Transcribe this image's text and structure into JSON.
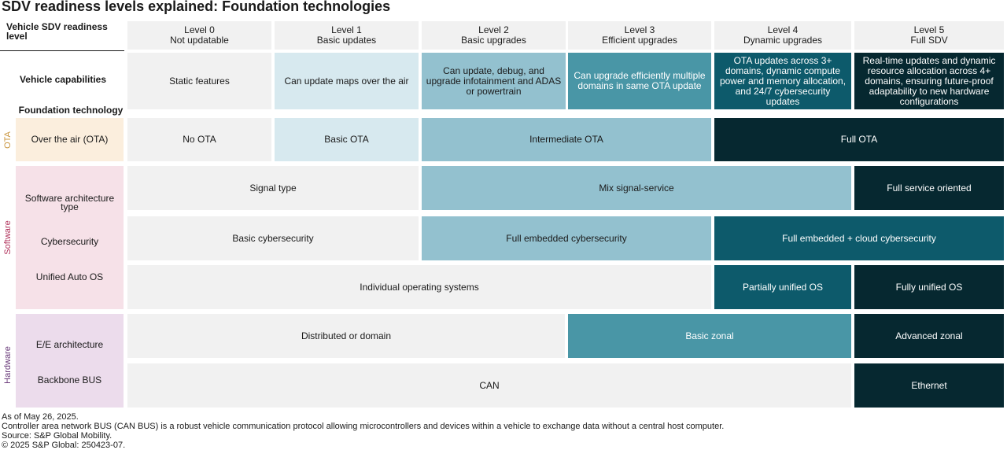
{
  "title": "SDV readiness levels explained: Foundation technologies",
  "header": {
    "corner_label": "Vehicle SDV readiness level",
    "levels": [
      {
        "level": "Level 0",
        "name": "Not updatable"
      },
      {
        "level": "Level 1",
        "name": "Basic updates"
      },
      {
        "level": "Level 2",
        "name": "Basic upgrades"
      },
      {
        "level": "Level 3",
        "name": "Efficient upgrades"
      },
      {
        "level": "Level 4",
        "name": "Dynamic upgrades"
      },
      {
        "level": "Level 5",
        "name": "Full SDV"
      }
    ]
  },
  "capabilities": {
    "label": "Vehicle capabilities",
    "cells": [
      "Static features",
      "Can update maps over the air",
      "Can update, debug, and upgrade infotainment and ADAS or powertrain",
      "Can upgrade efficiently multiple domains in same OTA update",
      "OTA updates across 3+ domains, dynamic compute power and memory allocation, and 24/7 cybersecurity updates",
      "Real-time updates and dynamic resource allocation across 4+ domains, ensuring future-proof adaptability to new hardware configurations"
    ]
  },
  "foundation_label": "Foundation technology",
  "groups": {
    "ota": {
      "name": "OTA",
      "color": "#c8943c",
      "bg": "#fbeedd"
    },
    "software": {
      "name": "Software",
      "color": "#b0305a",
      "bg": "#f6e1e8"
    },
    "hardware": {
      "name": "Hardware",
      "color": "#6a3a7a",
      "bg": "#ecdcec"
    }
  },
  "rows": {
    "ota": {
      "label": "Over the air (OTA)",
      "cells": [
        "No OTA",
        "Basic OTA",
        "Intermediate OTA",
        "Full OTA"
      ]
    },
    "sw_arch": {
      "label": "Software architecture type",
      "cells": [
        "Signal type",
        "Mix signal-service",
        "Full service oriented"
      ]
    },
    "cyber": {
      "label": "Cybersecurity",
      "cells": [
        "Basic cybersecurity",
        "Full embedded cybersecurity",
        "Full embedded + cloud cybersecurity"
      ]
    },
    "auto_os": {
      "label": "Unified Auto OS",
      "cells": [
        "Individual operating systems",
        "Partially unified OS",
        "Fully unified OS"
      ]
    },
    "ee_arch": {
      "label": "E/E architecture",
      "cells": [
        "Distributed or domain",
        "Basic zonal",
        "Advanced zonal"
      ]
    },
    "backbone": {
      "label": "Backbone BUS",
      "cells": [
        "CAN",
        "Ethernet"
      ]
    }
  },
  "footnotes": [
    "As of May 26, 2025.",
    "Controller area network BUS (CAN BUS) is a robust vehicle communication protocol allowing microcontrollers and devices within a vehicle to exchange data without a central host computer.",
    "Source: S&P Global Mobility.",
    "© 2025 S&P Global: 250423-07."
  ]
}
